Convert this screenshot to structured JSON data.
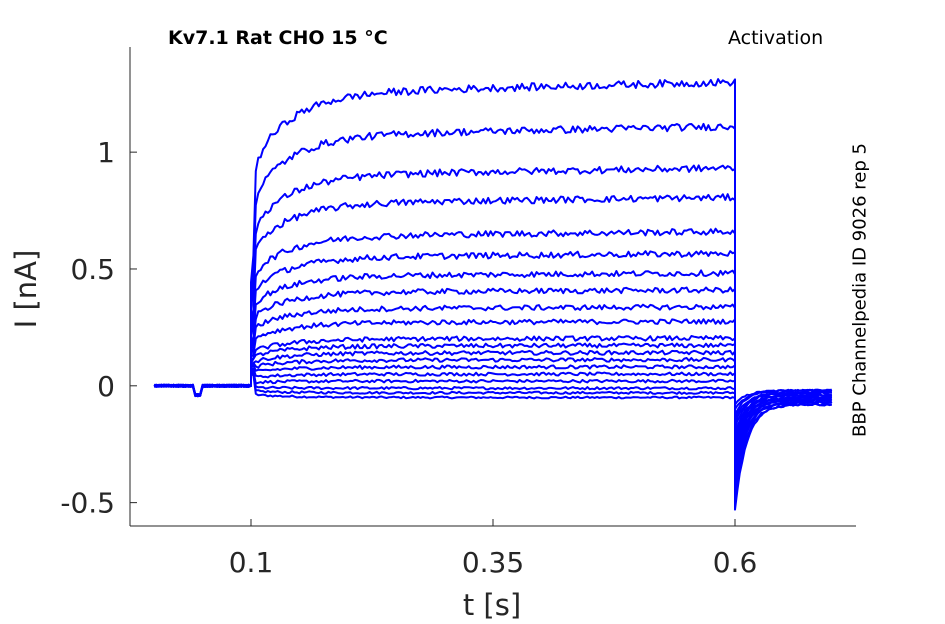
{
  "chart_data": {
    "type": "line",
    "title": "Kv7.1  Rat  CHO  15 °C",
    "subtitle": "Activation",
    "side_label": "BBP Channelpedia ID 9026 rep 5",
    "xlabel": "t [s]",
    "ylabel": "I [nA]",
    "xlim": [
      -0.025,
      0.725
    ],
    "ylim": [
      -0.6,
      1.45
    ],
    "xticks": [
      0.1,
      0.35,
      0.6
    ],
    "xtick_labels": [
      "0.1",
      "0.35",
      "0.6"
    ],
    "yticks": [
      -0.5,
      0,
      0.5,
      1
    ],
    "ytick_labels": [
      "-0.5",
      "0",
      "0.5",
      "1"
    ],
    "grid": false,
    "line_color": "#0000ff",
    "protocol": {
      "trace_start": 0.0,
      "step_start": 0.1,
      "step_end": 0.6,
      "trace_end": 0.7
    },
    "series": [
      {
        "start": 0.08,
        "plateau": -0.05,
        "tail": -0.02,
        "tail_peak": -0.08
      },
      {
        "start": 0.09,
        "plateau": -0.03,
        "tail": -0.02,
        "tail_peak": -0.1
      },
      {
        "start": 0.1,
        "plateau": -0.01,
        "tail": -0.02,
        "tail_peak": -0.12
      },
      {
        "start": 0.11,
        "plateau": 0.02,
        "tail": -0.03,
        "tail_peak": -0.14
      },
      {
        "start": 0.12,
        "plateau": 0.05,
        "tail": -0.03,
        "tail_peak": -0.16
      },
      {
        "start": 0.13,
        "plateau": 0.08,
        "tail": -0.03,
        "tail_peak": -0.18
      },
      {
        "start": 0.14,
        "plateau": 0.11,
        "tail": -0.04,
        "tail_peak": -0.2
      },
      {
        "start": 0.15,
        "plateau": 0.14,
        "tail": -0.04,
        "tail_peak": -0.22
      },
      {
        "start": 0.16,
        "plateau": 0.17,
        "tail": -0.04,
        "tail_peak": -0.24
      },
      {
        "start": 0.18,
        "plateau": 0.2,
        "tail": -0.05,
        "tail_peak": -0.26
      },
      {
        "start": 0.2,
        "plateau": 0.27,
        "tail": -0.05,
        "tail_peak": -0.28
      },
      {
        "start": 0.22,
        "plateau": 0.33,
        "tail": -0.05,
        "tail_peak": -0.3
      },
      {
        "start": 0.25,
        "plateau": 0.4,
        "tail": -0.06,
        "tail_peak": -0.32
      },
      {
        "start": 0.3,
        "plateau": 0.47,
        "tail": -0.06,
        "tail_peak": -0.34
      },
      {
        "start": 0.35,
        "plateau": 0.55,
        "tail": -0.06,
        "tail_peak": -0.36
      },
      {
        "start": 0.4,
        "plateau": 0.64,
        "tail": -0.07,
        "tail_peak": -0.38
      },
      {
        "start": 0.45,
        "plateau": 0.78,
        "tail": -0.07,
        "tail_peak": -0.4
      },
      {
        "start": 0.55,
        "plateau": 0.9,
        "tail": -0.07,
        "tail_peak": -0.43
      },
      {
        "start": 0.65,
        "plateau": 1.07,
        "tail": -0.08,
        "tail_peak": -0.47
      },
      {
        "start": 0.75,
        "plateau": 1.25,
        "tail": -0.08,
        "tail_peak": -0.53
      }
    ]
  }
}
